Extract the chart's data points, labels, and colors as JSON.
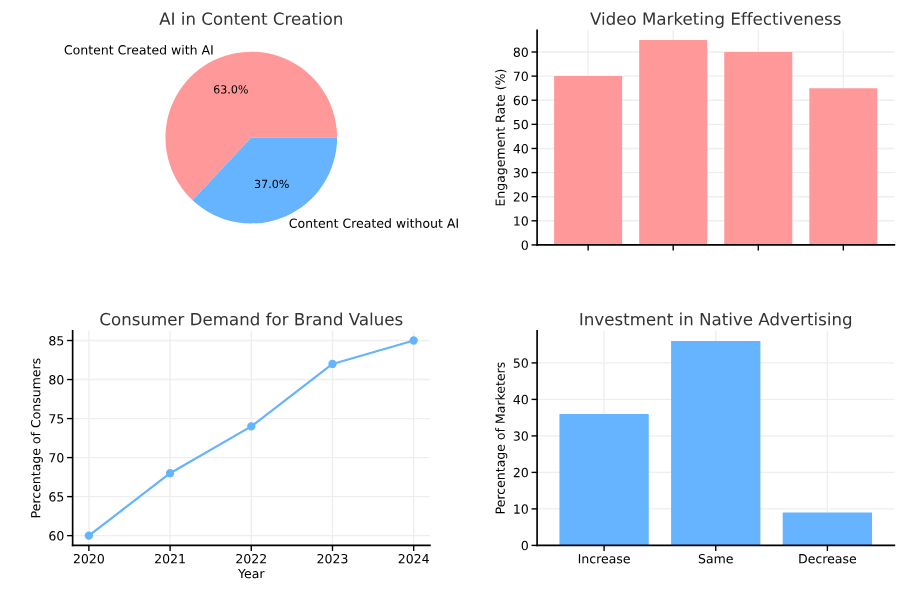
{
  "chart_data": [
    {
      "type": "pie",
      "title": "AI in Content Creation",
      "categories": [
        "Content Created with AI",
        "Content Created without AI"
      ],
      "values": [
        63.0,
        37.0
      ],
      "colors": [
        "#ff9999",
        "#66b3ff"
      ],
      "value_labels": [
        "63.0%",
        "37.0%"
      ]
    },
    {
      "type": "bar",
      "title": "Video Marketing Effectiveness",
      "ylabel": "Engagement Rate (%)",
      "categories": [
        null,
        null,
        null,
        null
      ],
      "values": [
        70,
        85,
        80,
        65
      ],
      "color": "#ff9999",
      "ylim": [
        0,
        89
      ],
      "yticks": [
        0,
        10,
        20,
        30,
        40,
        50,
        60,
        70,
        80
      ],
      "grid": true
    },
    {
      "type": "line",
      "title": "Consumer Demand for Brand Values",
      "xlabel": "Year",
      "ylabel": "Percentage of Consumers",
      "x": [
        2020,
        2021,
        2022,
        2023,
        2024
      ],
      "values": [
        60,
        68,
        74,
        82,
        85
      ],
      "color": "#66b3ff",
      "marker": "circle",
      "xlim": [
        2019.8,
        2024.2
      ],
      "xticks": [
        2020,
        2021,
        2022,
        2023,
        2024
      ],
      "ylim": [
        58.75,
        86.25
      ],
      "yticks": [
        60,
        65,
        70,
        75,
        80,
        85
      ],
      "grid": true
    },
    {
      "type": "bar",
      "title": "Investment in Native Advertising",
      "ylabel": "Percentage of Marketers",
      "categories": [
        "Increase",
        "Same",
        "Decrease"
      ],
      "values": [
        36,
        56,
        9
      ],
      "color": "#66b3ff",
      "ylim": [
        0,
        58.8
      ],
      "yticks": [
        0,
        10,
        20,
        30,
        40,
        50
      ],
      "grid": true
    }
  ]
}
